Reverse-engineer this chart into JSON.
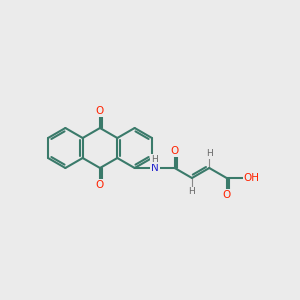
{
  "bg_color": "#ebebeb",
  "bond_color": "#3a7a6a",
  "bond_width": 1.5,
  "atom_colors": {
    "O": "#ff2200",
    "N": "#2222cc",
    "H": "#666666",
    "C": "#3a7a6a"
  },
  "font_size": 7.5
}
